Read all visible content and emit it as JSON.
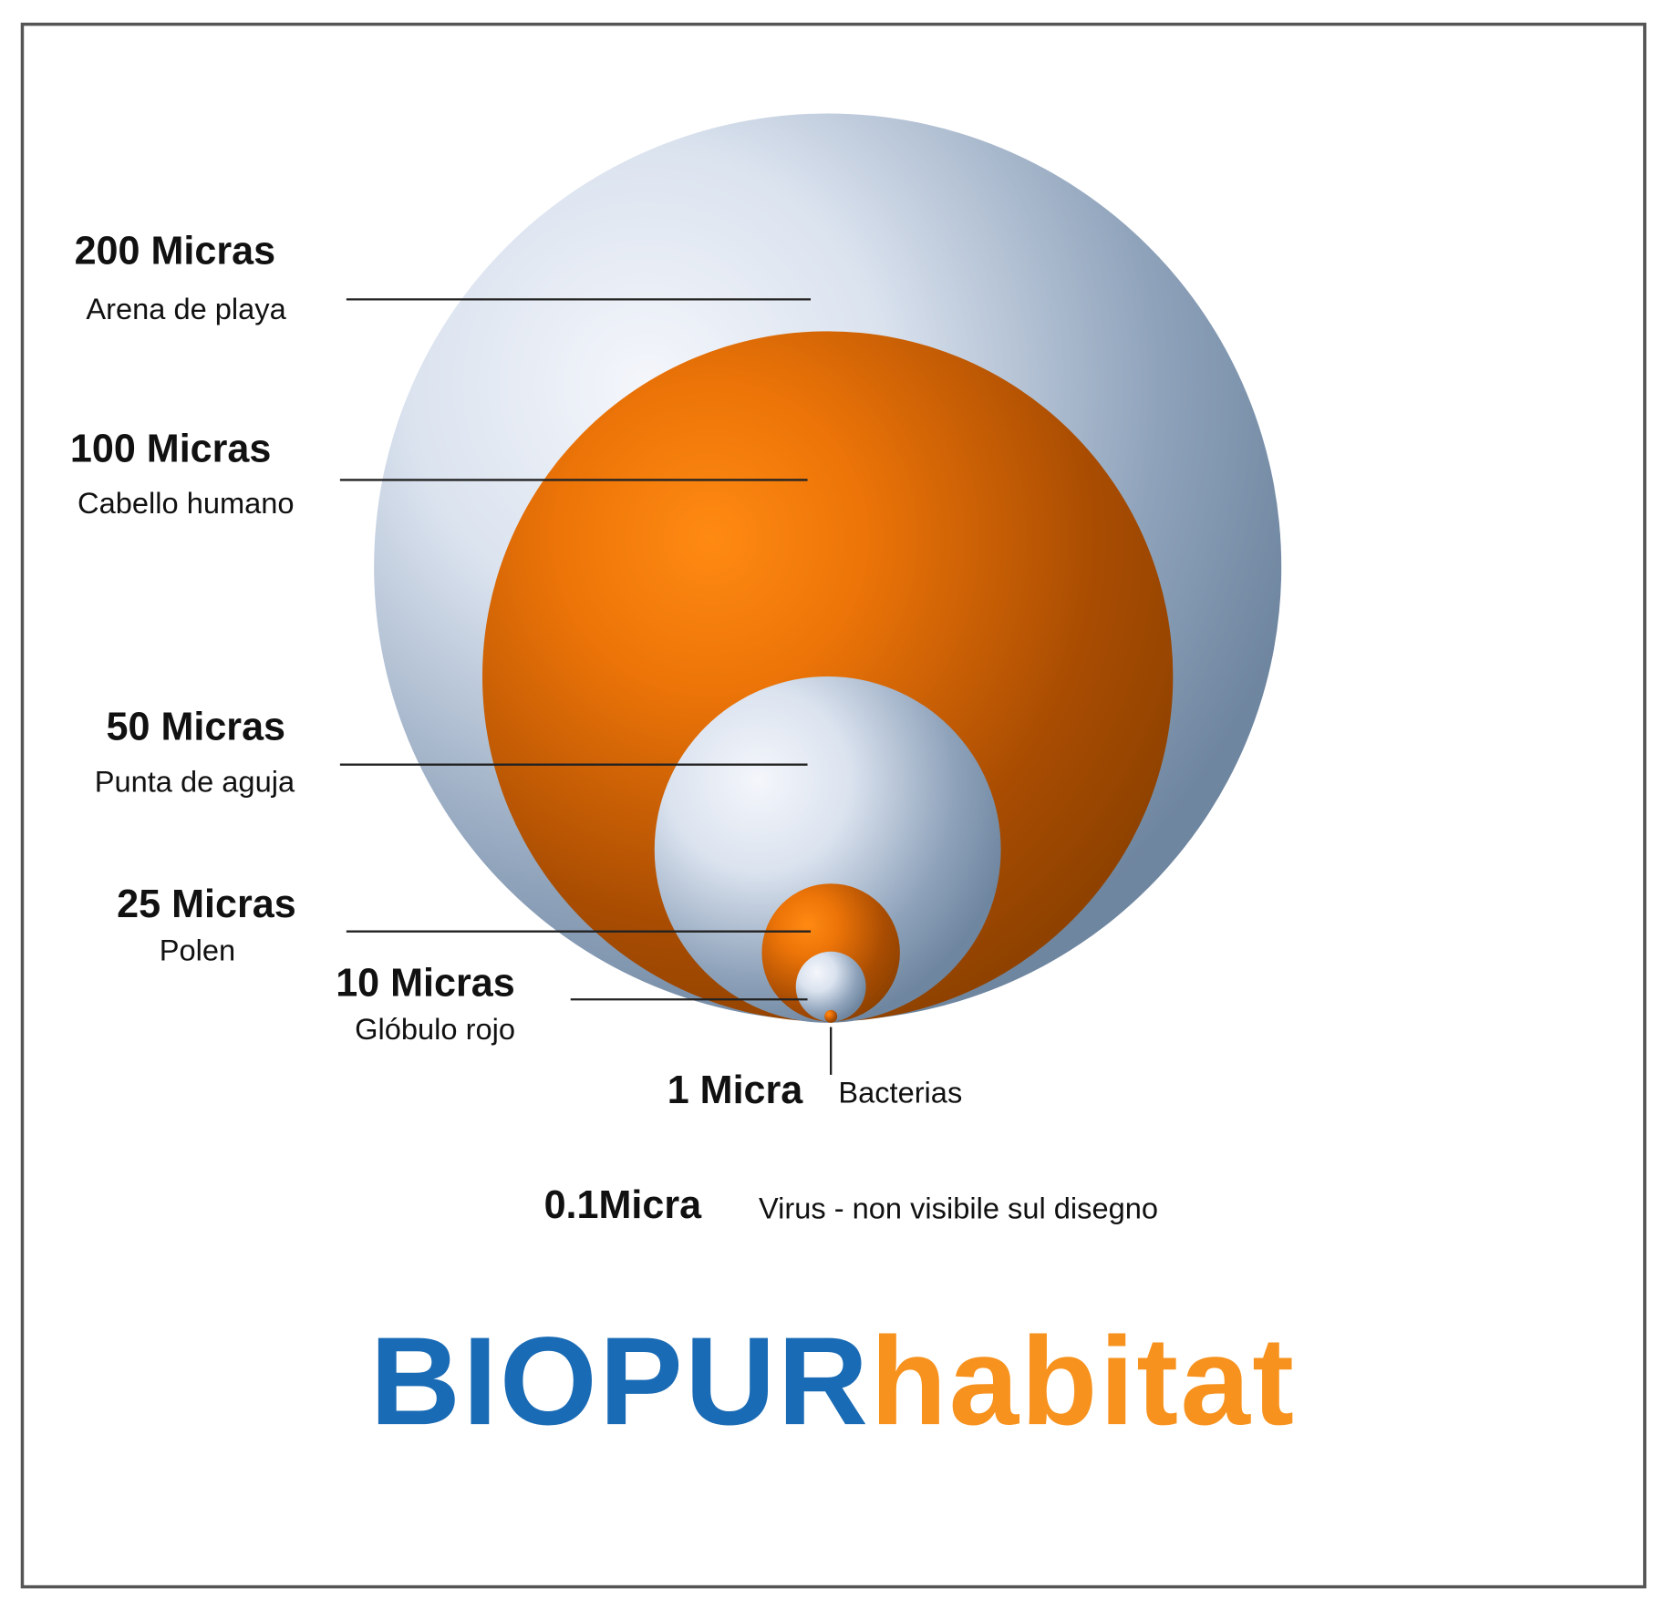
{
  "items": [
    {
      "size": "200 Micras",
      "label": "Arena de playa"
    },
    {
      "size": "100 Micras",
      "label": "Cabello humano"
    },
    {
      "size": "50 Micras",
      "label": "Punta de aguja"
    },
    {
      "size": "25 Micras",
      "label": "Polen"
    },
    {
      "size": "10 Micras",
      "label": "Glóbulo rojo"
    },
    {
      "size": "1 Micra",
      "label": "Bacterias"
    },
    {
      "size": "0.1Micra",
      "label": "Virus - non visibile sul disegno"
    }
  ],
  "logo": {
    "part1": "BIOPUR",
    "part2": "habitat"
  }
}
